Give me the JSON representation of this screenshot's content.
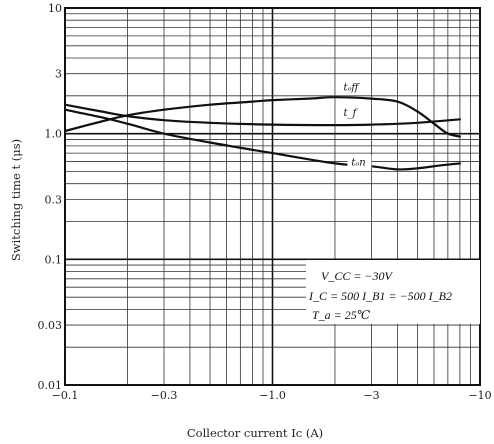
{
  "chart_data": {
    "type": "line",
    "title": "",
    "xlabel": "Collector current  Ic (A)",
    "ylabel": "Switching time  t (μs)",
    "xscale": "log",
    "yscale": "log",
    "xlim": [
      0.1,
      10
    ],
    "ylim": [
      0.01,
      10
    ],
    "x_axis_note": "negative currents, magnitude plotted on log scale",
    "x_ticks": [
      {
        "value": 0.1,
        "label": "−0.1"
      },
      {
        "value": 0.3,
        "label": "−0.3"
      },
      {
        "value": 1.0,
        "label": "−1.0"
      },
      {
        "value": 3,
        "label": "−3"
      },
      {
        "value": 10,
        "label": "−10"
      }
    ],
    "y_ticks": [
      {
        "value": 0.01,
        "label": "0.01"
      },
      {
        "value": 0.03,
        "label": "0.03"
      },
      {
        "value": 0.1,
        "label": "0.1"
      },
      {
        "value": 0.3,
        "label": "0.3"
      },
      {
        "value": 1.0,
        "label": "1.0"
      },
      {
        "value": 3,
        "label": "3"
      },
      {
        "value": 10,
        "label": "10"
      }
    ],
    "grid": true,
    "series": [
      {
        "name": "tₒff",
        "x": [
          0.1,
          0.15,
          0.2,
          0.3,
          0.5,
          0.8,
          1.0,
          1.5,
          2.0,
          3.0,
          4.0,
          5.0,
          6.0,
          7.0,
          8.0
        ],
        "y": [
          1.05,
          1.25,
          1.4,
          1.55,
          1.7,
          1.8,
          1.85,
          1.9,
          1.95,
          1.9,
          1.8,
          1.5,
          1.2,
          1.0,
          0.95
        ],
        "label_at": [
          2.2,
          2.2
        ]
      },
      {
        "name": "t_f",
        "x": [
          0.1,
          0.15,
          0.2,
          0.3,
          0.5,
          1.0,
          2.0,
          3.0,
          5.0,
          8.0
        ],
        "y": [
          1.7,
          1.5,
          1.38,
          1.28,
          1.22,
          1.18,
          1.17,
          1.18,
          1.22,
          1.3
        ],
        "label_at": [
          2.2,
          1.38
        ]
      },
      {
        "name": "tₒn",
        "x": [
          0.1,
          0.15,
          0.2,
          0.3,
          0.5,
          1.0,
          2.0,
          3.0,
          4.0,
          5.0,
          6.5,
          8.0
        ],
        "y": [
          1.55,
          1.35,
          1.2,
          1.0,
          0.85,
          0.7,
          0.58,
          0.55,
          0.52,
          0.53,
          0.56,
          0.58
        ],
        "label_at": [
          2.4,
          0.56
        ]
      }
    ],
    "annotations": [
      "V_CC = −30V",
      "I_C = 500 I_B1 = −500 I_B2",
      "T_a = 25℃"
    ]
  }
}
